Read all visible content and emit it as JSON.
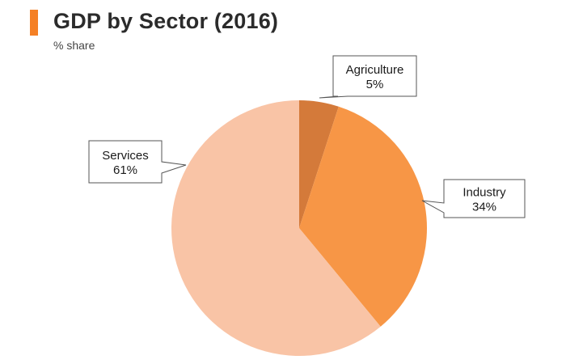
{
  "header": {
    "title": "GDP by Sector (2016)",
    "subtitle": "% share"
  },
  "chart_data": {
    "type": "pie",
    "title": "GDP by Sector (2016)",
    "subtitle": "% share",
    "unit": "%",
    "slices": [
      {
        "label": "Agriculture",
        "value": 5,
        "value_label": "5%",
        "color": "#d47a3a"
      },
      {
        "label": "Industry",
        "value": 34,
        "value_label": "34%",
        "color": "#f79646"
      },
      {
        "label": "Services",
        "value": 61,
        "value_label": "61%",
        "color": "#f9c4a6"
      }
    ],
    "start_angle": "12 o'clock",
    "direction": "clockwise",
    "labels": "callouts with leader lines"
  }
}
